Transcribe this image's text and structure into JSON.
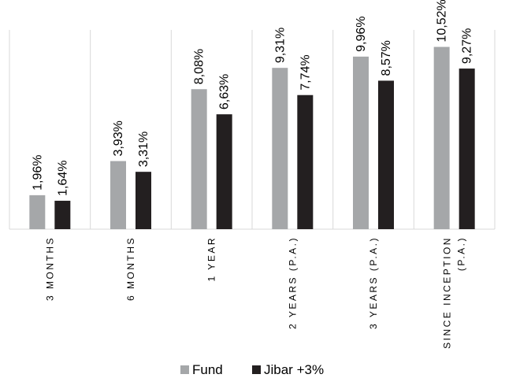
{
  "chart_data": {
    "type": "bar",
    "categories": [
      [
        "3 MONTHS"
      ],
      [
        "6 MONTHS"
      ],
      [
        "1 YEAR"
      ],
      [
        "2 YEARS (P.A.)"
      ],
      [
        "3 YEARS (P.A.)"
      ],
      [
        "SINCE INCEPTION",
        "(P.A.)"
      ]
    ],
    "series": [
      {
        "name": "Fund",
        "color": "#A5A7A9",
        "values": [
          1.96,
          3.93,
          8.08,
          9.31,
          9.96,
          10.52
        ],
        "labels": [
          "1,96%",
          "3,93%",
          "8,08%",
          "9,31%",
          "9,96%",
          "10,52%"
        ]
      },
      {
        "name": "Jibar +3%",
        "color": "#231F20",
        "values": [
          1.64,
          3.31,
          6.63,
          7.74,
          8.57,
          9.27
        ],
        "labels": [
          "1,64%",
          "3,31%",
          "6,63%",
          "7,74%",
          "8,57%",
          "9,27%"
        ]
      }
    ],
    "ylim": [
      0,
      11.5
    ],
    "grid": "vertical category separators",
    "legend": "bottom"
  }
}
